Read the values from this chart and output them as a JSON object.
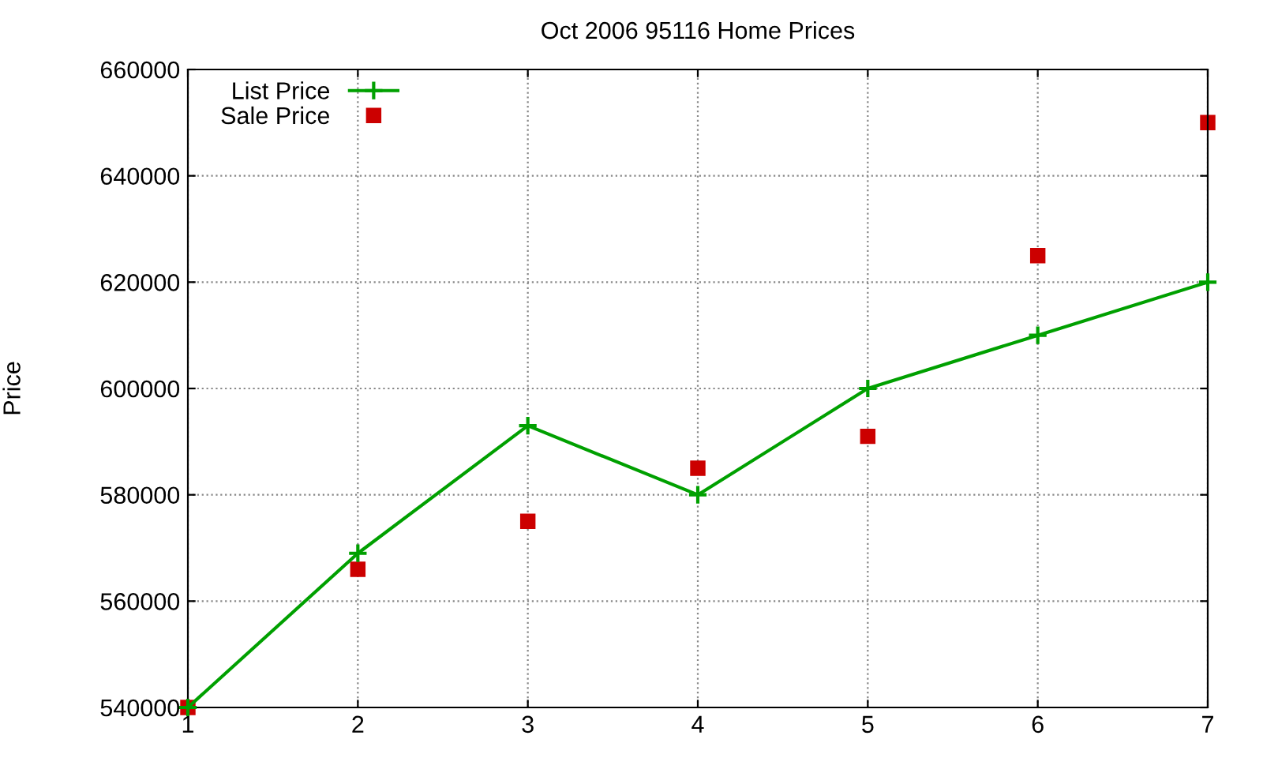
{
  "chart_data": {
    "type": "line",
    "title": "Oct 2006 95116 Home Prices",
    "ylabel": "Price",
    "x": [
      1,
      2,
      3,
      4,
      5,
      6,
      7
    ],
    "series": [
      {
        "name": "List Price",
        "type": "line",
        "color": "#00a000",
        "marker": "cross",
        "line_style": "solid",
        "values": [
          540000,
          569000,
          593000,
          580000,
          600000,
          610000,
          620000
        ]
      },
      {
        "name": "Sale Price",
        "type": "scatter",
        "color": "#cc0000",
        "marker": "square",
        "values": [
          540000,
          566000,
          575000,
          585000,
          591000,
          625000,
          650000
        ]
      }
    ],
    "xlim": [
      1,
      7
    ],
    "xticks": [
      1,
      2,
      3,
      4,
      5,
      6,
      7
    ],
    "ylim": [
      540000,
      660000
    ],
    "yticks": [
      540000,
      560000,
      580000,
      600000,
      620000,
      640000,
      660000
    ],
    "grid": true,
    "legend": "top left"
  }
}
